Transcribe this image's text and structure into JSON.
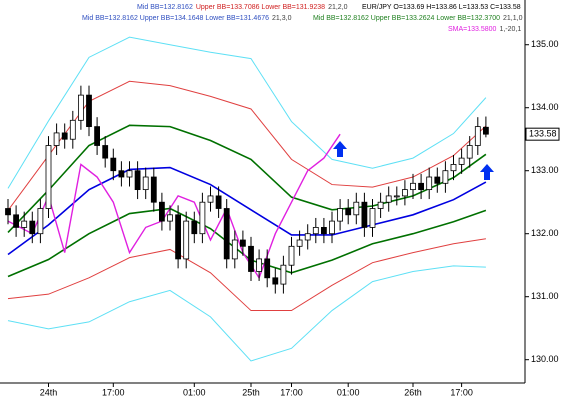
{
  "chart_data": {
    "type": "candlestick",
    "header": [
      [
        {
          "text": "Mid BB=132.8162",
          "color": "#3050c0"
        },
        {
          "text": "Upper BB=133.7086 Lower BB=131.9238",
          "color": "#d02020"
        },
        {
          "text": "21,2,0",
          "color": "#404040"
        }
      ],
      [
        {
          "text": "EUR/JPY O=133.69 H=133.86 L=133.53 C=133.58",
          "color": "#000000"
        }
      ],
      [
        {
          "text": "Mid BB=132.8162 Upper BB=134.1648 Lower BB=131.4676",
          "color": "#3050c0"
        },
        {
          "text": "21,3,0",
          "color": "#404040"
        }
      ],
      [
        {
          "text": "Mid BB=132.8162 Upper BB=133.2624 Lower BB=132.3700",
          "color": "#208020"
        },
        {
          "text": "21,1,0",
          "color": "#404040"
        }
      ],
      [
        {
          "text": "SMA=133.5800",
          "color": "#e020e0"
        },
        {
          "text": "1,-20,1",
          "color": "#404040"
        }
      ]
    ],
    "categories": [
      null,
      null,
      null,
      null,
      null,
      "24th",
      null,
      null,
      null,
      null,
      null,
      null,
      null,
      "17:00",
      null,
      null,
      null,
      null,
      null,
      null,
      null,
      null,
      null,
      "01:00",
      null,
      null,
      null,
      null,
      null,
      null,
      "25th",
      null,
      null,
      null,
      null,
      "17:00",
      null,
      null,
      null,
      null,
      null,
      null,
      "01:00",
      null,
      null,
      null,
      null,
      null,
      null,
      null,
      "26th",
      null,
      null,
      null,
      null,
      null,
      "17:00",
      null,
      null,
      null
    ],
    "candles": {
      "open": [
        132.4,
        132.3,
        132.1,
        132.2,
        132.0,
        132.4,
        133.4,
        133.6,
        133.5,
        133.8,
        134.2,
        133.7,
        133.4,
        133.2,
        133.0,
        132.9,
        133.0,
        132.7,
        132.9,
        132.5,
        132.2,
        132.3,
        131.6,
        132.2,
        132.0,
        132.5,
        132.6,
        132.4,
        131.6,
        131.9,
        131.8,
        131.4,
        131.6,
        131.3,
        131.2,
        131.5,
        131.8,
        131.9,
        132.0,
        132.1,
        132.0,
        132.2,
        132.4,
        132.3,
        132.5,
        132.1,
        132.4,
        132.5,
        132.6,
        132.6,
        132.7,
        132.8,
        132.7,
        132.9,
        132.8,
        133.0,
        133.1,
        133.2,
        133.4,
        133.69
      ],
      "high": [
        132.55,
        132.45,
        132.35,
        132.35,
        132.55,
        133.55,
        133.75,
        133.75,
        133.95,
        134.35,
        134.35,
        133.85,
        133.55,
        133.35,
        133.15,
        133.15,
        133.15,
        133.05,
        133.05,
        132.65,
        132.45,
        132.45,
        132.35,
        132.35,
        132.65,
        132.75,
        132.75,
        132.55,
        132.05,
        132.05,
        131.95,
        131.75,
        131.75,
        131.45,
        131.65,
        131.95,
        132.05,
        132.15,
        132.25,
        132.25,
        132.35,
        132.55,
        132.55,
        132.65,
        132.65,
        132.55,
        132.65,
        132.75,
        132.75,
        132.85,
        132.95,
        132.95,
        133.05,
        133.05,
        133.15,
        133.25,
        133.35,
        133.55,
        133.85,
        133.86
      ],
      "low": [
        132.15,
        131.95,
        131.95,
        131.85,
        131.85,
        132.25,
        133.25,
        133.35,
        133.35,
        133.65,
        133.55,
        133.25,
        133.05,
        132.85,
        132.75,
        132.75,
        132.55,
        132.55,
        132.35,
        132.05,
        132.05,
        131.45,
        131.45,
        131.85,
        131.85,
        132.35,
        132.25,
        131.45,
        131.45,
        131.65,
        131.25,
        131.25,
        131.15,
        131.05,
        131.05,
        131.35,
        131.65,
        131.75,
        131.85,
        131.85,
        131.85,
        132.05,
        132.15,
        132.15,
        131.95,
        131.95,
        132.25,
        132.35,
        132.45,
        132.45,
        132.55,
        132.55,
        132.55,
        132.65,
        132.65,
        132.85,
        132.95,
        133.05,
        133.25,
        133.53
      ],
      "close": [
        132.3,
        132.1,
        132.2,
        132.0,
        132.4,
        133.4,
        133.6,
        133.5,
        133.8,
        134.2,
        133.7,
        133.4,
        133.2,
        133.0,
        132.9,
        133.0,
        132.7,
        132.9,
        132.5,
        132.2,
        132.3,
        131.6,
        132.2,
        132.0,
        132.5,
        132.6,
        132.4,
        131.6,
        131.9,
        131.8,
        131.4,
        131.6,
        131.3,
        131.2,
        131.5,
        131.8,
        131.9,
        132.0,
        132.1,
        132.0,
        132.2,
        132.4,
        132.3,
        132.5,
        132.1,
        132.4,
        132.5,
        132.6,
        132.6,
        132.7,
        132.8,
        132.7,
        132.9,
        132.8,
        133.0,
        133.1,
        133.2,
        133.4,
        133.7,
        133.58
      ]
    },
    "bands": {
      "x": [
        0,
        5,
        10,
        15,
        20,
        25,
        30,
        35,
        40,
        45,
        50,
        55,
        59
      ],
      "series": [
        {
          "color": "#5ee0f5",
          "values": [
            132.72,
            133.79,
            134.8,
            135.12,
            135.0,
            134.88,
            134.78,
            133.78,
            133.18,
            133.04,
            133.2,
            133.59,
            134.16
          ]
        },
        {
          "color": "#5ee0f5",
          "values": [
            130.62,
            130.49,
            130.6,
            130.92,
            131.1,
            130.68,
            129.98,
            130.18,
            130.78,
            131.24,
            131.4,
            131.49,
            131.47
          ]
        },
        {
          "color": "#e04040",
          "values": [
            132.37,
            133.24,
            134.1,
            134.42,
            134.35,
            134.18,
            133.98,
            133.18,
            132.78,
            132.74,
            132.9,
            133.24,
            133.71
          ]
        },
        {
          "color": "#e04040",
          "values": [
            130.97,
            131.04,
            131.3,
            131.62,
            131.75,
            131.38,
            130.78,
            130.78,
            131.18,
            131.54,
            131.7,
            131.84,
            131.92
          ]
        },
        {
          "color": "#007000",
          "values": [
            132.02,
            132.69,
            133.4,
            133.72,
            133.7,
            133.48,
            133.18,
            132.58,
            132.38,
            132.44,
            132.6,
            132.89,
            133.26
          ]
        },
        {
          "color": "#007000",
          "values": [
            131.32,
            131.59,
            132.0,
            132.32,
            132.4,
            132.08,
            131.58,
            131.38,
            131.58,
            131.84,
            132.0,
            132.19,
            132.37
          ]
        },
        {
          "color": "#0000e0",
          "values": [
            131.67,
            132.14,
            132.7,
            133.02,
            133.05,
            132.78,
            132.38,
            131.98,
            131.98,
            132.14,
            132.3,
            132.54,
            132.82
          ]
        }
      ]
    },
    "sma": {
      "color": "#e020e0",
      "x": [
        0,
        3,
        5,
        7,
        9,
        11,
        13,
        15,
        17,
        19,
        21,
        23,
        25,
        27,
        29,
        31,
        33,
        35,
        37,
        39,
        41
      ],
      "values": [
        132.2,
        132.0,
        132.6,
        131.7,
        133.1,
        132.9,
        132.5,
        131.7,
        132.1,
        132.2,
        132.6,
        132.5,
        131.9,
        132.4,
        131.7,
        131.3,
        132.0,
        132.5,
        133.0,
        133.2,
        133.58
      ]
    },
    "ylim": [
      129.63,
      135.71
    ],
    "yticks": [
      {
        "value": 130,
        "label": "130.00"
      },
      {
        "value": 131,
        "label": "131.00"
      },
      {
        "value": 132,
        "label": "132.00"
      },
      {
        "value": 133,
        "label": "133.00"
      },
      {
        "value": 134,
        "label": "134.00"
      },
      {
        "value": 135,
        "label": "135.00"
      }
    ]
  }
}
